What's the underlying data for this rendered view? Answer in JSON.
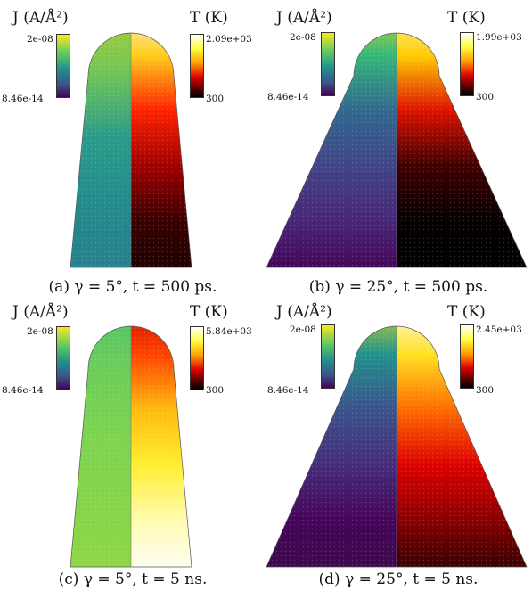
{
  "figure": {
    "panels": [
      {
        "id": "a",
        "caption": "(a) γ = 5°, t = 500 ps.",
        "gamma_deg": 5,
        "j_colorbar": {
          "title": "J (A/Å²)",
          "max": "2e-08",
          "min": "8.46e-14"
        },
        "t_colorbar": {
          "title": "T (K)",
          "max": "2.09e+03",
          "min": "300"
        },
        "current_color_stops": [
          "#bccf2c",
          "#74c653",
          "#2a9b8a",
          "#238a8d",
          "#26808e"
        ],
        "temperature_color_stops": [
          "#ffffff",
          "#ffcc1a",
          "#ff2200",
          "#a00000",
          "#3a0000",
          "#1a0000"
        ]
      },
      {
        "id": "b",
        "caption": "(b) γ = 25°, t = 500 ps.",
        "gamma_deg": 25,
        "j_colorbar": {
          "title": "J (A/Å²)",
          "max": "2e-08",
          "min": "8.46e-14"
        },
        "t_colorbar": {
          "title": "T (K)",
          "max": "1.99e+03",
          "min": "300"
        },
        "current_color_stops": [
          "#e8e419",
          "#35b779",
          "#31688e",
          "#414487",
          "#482677",
          "#440154"
        ],
        "temperature_color_stops": [
          "#ffffd0",
          "#ffcc00",
          "#dd1100",
          "#400000",
          "#050000",
          "#000000"
        ]
      },
      {
        "id": "c",
        "caption": "(c) γ = 5°, t = 5 ns.",
        "gamma_deg": 5,
        "j_colorbar": {
          "title": "J (A/Å²)",
          "max": "2e-08",
          "min": "8.46e-14"
        },
        "t_colorbar": {
          "title": "T (K)",
          "max": "5.84e+03",
          "min": "300"
        },
        "current_color_stops": [
          "#4cc26c",
          "#6ccd5a",
          "#7ed34f",
          "#86d549",
          "#8fd744"
        ],
        "temperature_color_stops": [
          "#cc0000",
          "#ff4400",
          "#ffbb10",
          "#ffee30",
          "#fffbb0",
          "#ffffff"
        ]
      },
      {
        "id": "d",
        "caption": "(d) γ = 25°, t = 5 ns.",
        "gamma_deg": 25,
        "j_colorbar": {
          "title": "J (A/Å²)",
          "max": "2e-08",
          "min": "8.46e-14"
        },
        "t_colorbar": {
          "title": "T (K)",
          "max": "2.45e+03",
          "min": "300"
        },
        "current_color_stops": [
          "#e0e020",
          "#21918c",
          "#3b528b",
          "#472c7a",
          "#450559",
          "#3a0a4a"
        ],
        "temperature_color_stops": [
          "#ffffff",
          "#ffe020",
          "#ff6a00",
          "#dd0000",
          "#880000",
          "#2a0000"
        ]
      }
    ]
  }
}
